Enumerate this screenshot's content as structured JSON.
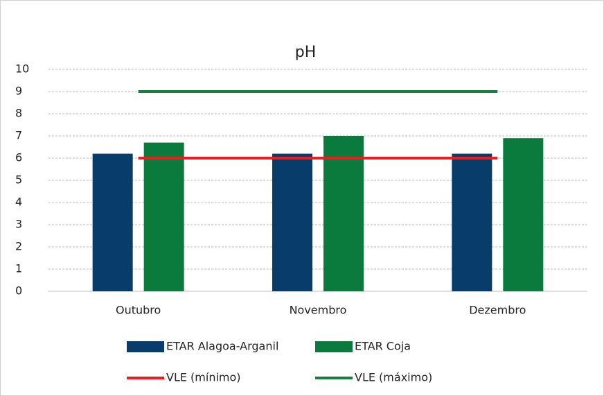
{
  "chart_data": {
    "type": "bar",
    "title": "pH",
    "categories": [
      "Outubro",
      "Novembro",
      "Dezembro"
    ],
    "series": [
      {
        "name": "ETAR Alagoa-Arganil",
        "type": "bar",
        "color": "#083d6b",
        "values": [
          6.2,
          6.2,
          6.2
        ]
      },
      {
        "name": "ETAR Coja",
        "type": "bar",
        "color": "#0b7a3d",
        "values": [
          6.7,
          7.0,
          6.9
        ]
      },
      {
        "name": "VLE (mínimo)",
        "type": "line",
        "color": "#ee1c1c",
        "values": [
          6,
          6,
          6
        ]
      },
      {
        "name": "VLE (máximo)",
        "type": "line",
        "color": "#178041",
        "values": [
          9,
          9,
          9
        ]
      }
    ],
    "ylim": [
      0,
      10
    ],
    "yticks": [
      0,
      1,
      2,
      3,
      4,
      5,
      6,
      7,
      8,
      9,
      10
    ],
    "grid": true
  }
}
